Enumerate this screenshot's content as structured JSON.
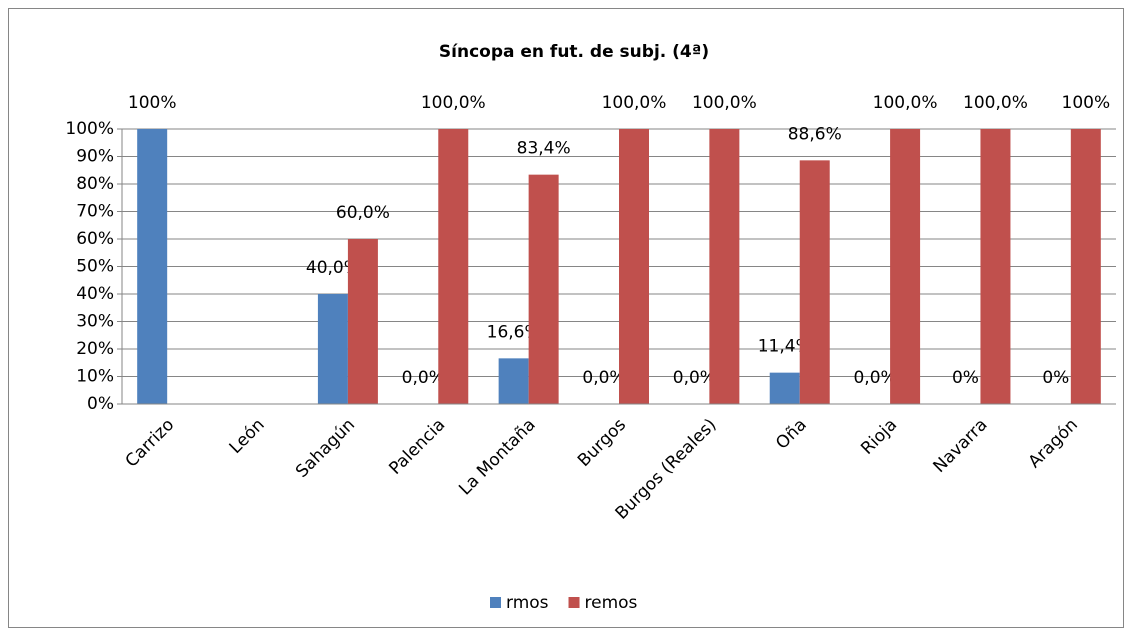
{
  "chart_data": {
    "type": "bar",
    "title": "Síncopa en fut. de subj. (4ª)",
    "categories": [
      "Carrizo",
      "León",
      "Sahagún",
      "Palencia",
      "La Montaña",
      "Burgos",
      "Burgos (Reales)",
      "Oña",
      "Rioja",
      "Navarra",
      "Aragón"
    ],
    "series": [
      {
        "name": "rmos",
        "color": "#4f81bd",
        "values": [
          100,
          null,
          40,
          0,
          16.6,
          0,
          0,
          11.4,
          0,
          0,
          0
        ],
        "value_labels": [
          "100%",
          null,
          "40,0%",
          "0,0%",
          "16,6%",
          "0,0%",
          "0,0%",
          "11,4%",
          "0,0%",
          "0%",
          "0%"
        ]
      },
      {
        "name": "remos",
        "color": "#c0504d",
        "values": [
          null,
          null,
          60,
          100,
          83.4,
          100,
          100,
          88.6,
          100,
          100,
          100
        ],
        "value_labels": [
          null,
          null,
          "60,0%",
          "100,0%",
          "83,4%",
          "100,0%",
          "100,0%",
          "88,6%",
          "100,0%",
          "100,0%",
          "100%"
        ]
      }
    ],
    "ylim": [
      0,
      100
    ],
    "yticks": [
      {
        "value": 0,
        "label": "0%"
      },
      {
        "value": 10,
        "label": "10%"
      },
      {
        "value": 20,
        "label": "20%"
      },
      {
        "value": 30,
        "label": "30%"
      },
      {
        "value": 40,
        "label": "40%"
      },
      {
        "value": 50,
        "label": "50%"
      },
      {
        "value": 60,
        "label": "60%"
      },
      {
        "value": 70,
        "label": "70%"
      },
      {
        "value": 80,
        "label": "80%"
      },
      {
        "value": 90,
        "label": "90%"
      },
      {
        "value": 100,
        "label": "100%"
      }
    ],
    "grid": true,
    "legend": "bottom"
  }
}
